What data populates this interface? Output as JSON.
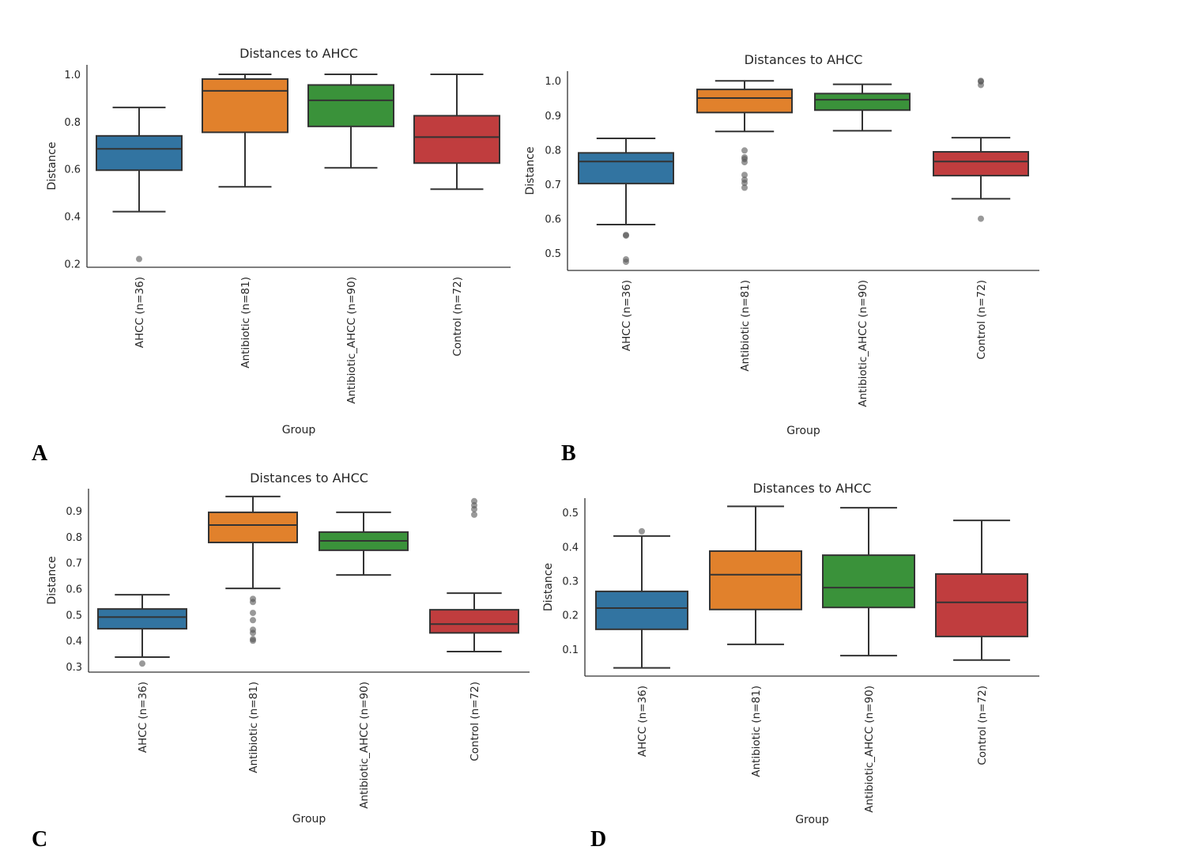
{
  "colors": {
    "AHCC": "#3274a1",
    "Antibiotic": "#e1812c",
    "Antibiotic_AHCC": "#3a923a",
    "Control": "#c03d3e",
    "outline": "#333333",
    "outlier": "#8a8a8a"
  },
  "chart_data": [
    {
      "panel": "A",
      "type": "box",
      "title": "Distances to AHCC",
      "xlabel": "Group",
      "ylabel": "Distance",
      "ylim": [
        0.185,
        1.04
      ],
      "yticks": [
        0.2,
        0.4,
        0.6,
        0.8,
        1.0
      ],
      "ytick_labels": [
        "0.2",
        "0.4",
        "0.6",
        "0.8",
        "1.0"
      ],
      "grid": false,
      "categories": [
        "AHCC (n=36)",
        "Antibiotic (n=81)",
        "Antibiotic_AHCC (n=90)",
        "Control (n=72)"
      ],
      "boxes": [
        {
          "whislo": 0.42,
          "q1": 0.595,
          "median": 0.685,
          "q3": 0.74,
          "whishi": 0.86,
          "fliers": [
            0.22
          ]
        },
        {
          "whislo": 0.525,
          "q1": 0.755,
          "median": 0.93,
          "q3": 0.98,
          "whishi": 1.0,
          "fliers": []
        },
        {
          "whislo": 0.605,
          "q1": 0.78,
          "median": 0.89,
          "q3": 0.955,
          "whishi": 1.0,
          "fliers": []
        },
        {
          "whislo": 0.515,
          "q1": 0.625,
          "median": 0.735,
          "q3": 0.825,
          "whishi": 1.0,
          "fliers": []
        }
      ]
    },
    {
      "panel": "B",
      "type": "box",
      "title": "Distances to AHCC",
      "xlabel": "Group",
      "ylabel": "Distance",
      "ylim": [
        0.45,
        1.028
      ],
      "yticks": [
        0.5,
        0.6,
        0.7,
        0.8,
        0.9,
        1.0
      ],
      "ytick_labels": [
        "0.5",
        "0.6",
        "0.7",
        "0.8",
        "0.9",
        "1.0"
      ],
      "grid": false,
      "categories": [
        "AHCC (n=36)",
        "Antibiotic (n=81)",
        "Antibiotic_AHCC (n=90)",
        "Control (n=72)"
      ],
      "boxes": [
        {
          "whislo": 0.583,
          "q1": 0.702,
          "median": 0.766,
          "q3": 0.791,
          "whishi": 0.833,
          "fliers": [
            0.553,
            0.551,
            0.482,
            0.475
          ]
        },
        {
          "whislo": 0.853,
          "q1": 0.908,
          "median": 0.95,
          "q3": 0.975,
          "whishi": 1.0,
          "fliers": [
            0.798,
            0.778,
            0.773,
            0.764,
            0.727,
            0.713,
            0.704,
            0.69
          ]
        },
        {
          "whislo": 0.855,
          "q1": 0.915,
          "median": 0.945,
          "q3": 0.963,
          "whishi": 0.99,
          "fliers": []
        },
        {
          "whislo": 0.658,
          "q1": 0.725,
          "median": 0.766,
          "q3": 0.794,
          "whishi": 0.835,
          "fliers": [
            1.0,
            0.998,
            0.988,
            0.6
          ]
        }
      ]
    },
    {
      "panel": "C",
      "type": "box",
      "title": "Distances to AHCC",
      "xlabel": "Group",
      "ylabel": "Distance",
      "ylim": [
        0.279,
        0.985
      ],
      "yticks": [
        0.3,
        0.4,
        0.5,
        0.6,
        0.7,
        0.8,
        0.9
      ],
      "ytick_labels": [
        "0.3",
        "0.4",
        "0.5",
        "0.6",
        "0.7",
        "0.8",
        "0.9"
      ],
      "grid": false,
      "categories": [
        "AHCC (n=36)",
        "Antibiotic (n=81)",
        "Antibiotic_AHCC (n=90)",
        "Control (n=72)"
      ],
      "boxes": [
        {
          "whislo": 0.337,
          "q1": 0.446,
          "median": 0.491,
          "q3": 0.522,
          "whishi": 0.577,
          "fliers": [
            0.312
          ]
        },
        {
          "whislo": 0.601,
          "q1": 0.778,
          "median": 0.845,
          "q3": 0.894,
          "whishi": 0.955,
          "fliers": [
            0.561,
            0.549,
            0.507,
            0.479,
            0.442,
            0.43,
            0.406,
            0.4
          ]
        },
        {
          "whislo": 0.653,
          "q1": 0.748,
          "median": 0.784,
          "q3": 0.818,
          "whishi": 0.894,
          "fliers": []
        },
        {
          "whislo": 0.358,
          "q1": 0.43,
          "median": 0.464,
          "q3": 0.519,
          "whishi": 0.583,
          "fliers": [
            0.937,
            0.921,
            0.906,
            0.885
          ]
        }
      ]
    },
    {
      "panel": "D",
      "type": "box",
      "title": "Distances to AHCC",
      "xlabel": "Group",
      "ylabel": "Distance",
      "ylim": [
        0.021,
        0.542
      ],
      "yticks": [
        0.1,
        0.2,
        0.3,
        0.4,
        0.5
      ],
      "ytick_labels": [
        "0.1",
        "0.2",
        "0.3",
        "0.4",
        "0.5"
      ],
      "grid": false,
      "categories": [
        "AHCC (n=36)",
        "Antibiotic (n=81)",
        "Antibiotic_AHCC (n=90)",
        "Control (n=72)"
      ],
      "boxes": [
        {
          "whislo": 0.045,
          "q1": 0.158,
          "median": 0.22,
          "q3": 0.269,
          "whishi": 0.431,
          "fliers": [
            0.445
          ]
        },
        {
          "whislo": 0.114,
          "q1": 0.216,
          "median": 0.318,
          "q3": 0.387,
          "whishi": 0.518,
          "fliers": []
        },
        {
          "whislo": 0.081,
          "q1": 0.222,
          "median": 0.28,
          "q3": 0.375,
          "whishi": 0.514,
          "fliers": []
        },
        {
          "whislo": 0.068,
          "q1": 0.137,
          "median": 0.237,
          "q3": 0.32,
          "whishi": 0.477,
          "fliers": []
        }
      ]
    }
  ]
}
